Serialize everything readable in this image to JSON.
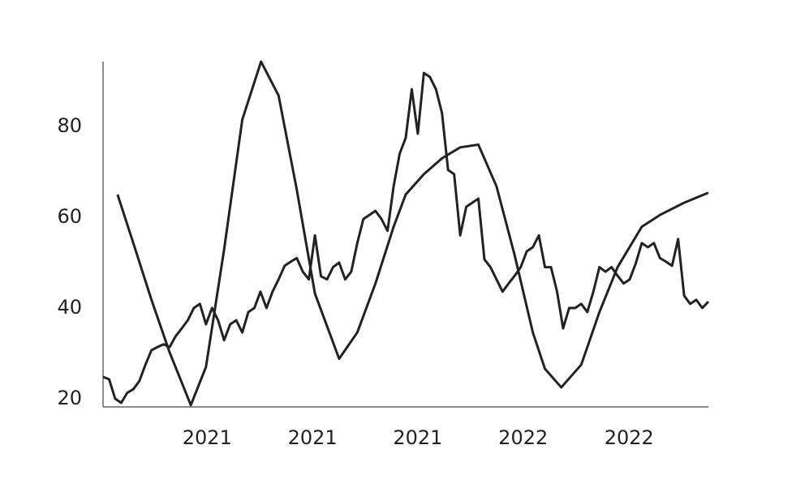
{
  "chart_data": {
    "type": "line",
    "xlim": [
      0,
      100
    ],
    "ylim": [
      18.2,
      94.3
    ],
    "xticks": [
      {
        "value": 17.2,
        "label": "2021"
      },
      {
        "value": 34.6,
        "label": "2021"
      },
      {
        "value": 52,
        "label": "2021"
      },
      {
        "value": 69.4,
        "label": "2022"
      },
      {
        "value": 86.9,
        "label": "2022"
      }
    ],
    "yticks": [
      20,
      40,
      60,
      80
    ],
    "grid": false,
    "series": [
      {
        "color": "#222222",
        "x": [
          0,
          1,
          2,
          3,
          4,
          5,
          6,
          7,
          8,
          9,
          10,
          11,
          12,
          13,
          14,
          15,
          16,
          17,
          18,
          19,
          20,
          21,
          22,
          23,
          24,
          25,
          26,
          27,
          28,
          29,
          30,
          31,
          32,
          33,
          34,
          35,
          36,
          37,
          38,
          39,
          40,
          41,
          42,
          43,
          44,
          45,
          46,
          47,
          48,
          49,
          50,
          51,
          52,
          53,
          54,
          55,
          56,
          57,
          58,
          59,
          60,
          61,
          62,
          63,
          64,
          65,
          66,
          67,
          68,
          69,
          70,
          71,
          72,
          73,
          74,
          75,
          76,
          77,
          78,
          79,
          80,
          81,
          82,
          83,
          84,
          85,
          86,
          87,
          88,
          89,
          90,
          91,
          92,
          93,
          94,
          95,
          96,
          97,
          98,
          99,
          100
        ],
        "values": [
          24.8,
          24.3,
          20,
          19.1,
          21.3,
          22.1,
          23.9,
          27.5,
          30.7,
          31.4,
          32,
          31.4,
          33.8,
          35.5,
          37.3,
          40,
          40.9,
          36.4,
          40,
          37.3,
          32.9,
          36.4,
          37.3,
          34.6,
          39.1,
          40,
          43.6,
          40,
          43.6,
          46.3,
          49.3,
          50.2,
          51,
          48,
          46.3,
          56,
          47,
          46.3,
          49,
          50,
          46.3,
          48,
          54.3,
          59.6,
          60.5,
          61.4,
          59.6,
          57,
          66.8,
          74,
          77.5,
          88.2,
          78.4,
          91.8,
          90.9,
          88.2,
          82.9,
          70.4,
          69.5,
          56,
          62.3,
          63.2,
          64.1,
          50.7,
          49,
          46.3,
          43.6,
          45.4,
          47.1,
          49,
          52.5,
          53.4,
          56,
          49,
          49,
          43.6,
          35.5,
          40,
          40,
          40.9,
          39.1,
          43.6,
          49,
          48,
          49,
          47.1,
          45.4,
          46.3,
          49.8,
          54.3,
          53.4,
          54.3,
          51,
          50.2,
          49.3,
          55.2,
          42.7,
          40.9,
          41.8,
          40,
          41.4
        ]
      },
      {
        "color": "#222222",
        "x": [
          2.4,
          5,
          8,
          11,
          14.5,
          17,
          20,
          23,
          26.1,
          29,
          32,
          35,
          39,
          42,
          45,
          48,
          50,
          53,
          56,
          59,
          62,
          65,
          68,
          71,
          73,
          75.7,
          79,
          82,
          85,
          89,
          92,
          96,
          100
        ],
        "values": [
          65,
          54.3,
          41.8,
          30.2,
          18.6,
          27,
          52.9,
          81.5,
          94.3,
          86.8,
          66.1,
          43.2,
          28.8,
          34.6,
          45.4,
          57.9,
          65,
          69.5,
          73,
          75.4,
          76,
          66.8,
          51.6,
          34.6,
          26.6,
          22.5,
          27.5,
          39.1,
          49,
          57.9,
          60.5,
          63.2,
          65.4
        ]
      }
    ]
  }
}
